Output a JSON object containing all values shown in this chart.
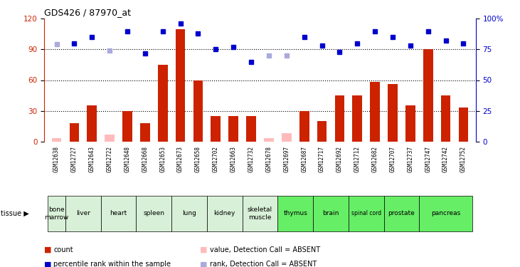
{
  "title": "GDS426 / 87970_at",
  "samples": [
    "GSM12638",
    "GSM12727",
    "GSM12643",
    "GSM12722",
    "GSM12648",
    "GSM12668",
    "GSM12653",
    "GSM12673",
    "GSM12658",
    "GSM12702",
    "GSM12663",
    "GSM12732",
    "GSM12678",
    "GSM12697",
    "GSM12687",
    "GSM12717",
    "GSM12692",
    "GSM12712",
    "GSM12682",
    "GSM12707",
    "GSM12737",
    "GSM12747",
    "GSM12742",
    "GSM12752"
  ],
  "tissues": [
    {
      "label": "bone\nmarrow",
      "start": 0,
      "end": 1,
      "color": "#d8f0d8"
    },
    {
      "label": "liver",
      "start": 1,
      "end": 3,
      "color": "#d8f0d8"
    },
    {
      "label": "heart",
      "start": 3,
      "end": 5,
      "color": "#d8f0d8"
    },
    {
      "label": "spleen",
      "start": 5,
      "end": 7,
      "color": "#d8f0d8"
    },
    {
      "label": "lung",
      "start": 7,
      "end": 9,
      "color": "#d8f0d8"
    },
    {
      "label": "kidney",
      "start": 9,
      "end": 11,
      "color": "#d8f0d8"
    },
    {
      "label": "skeletal\nmuscle",
      "start": 11,
      "end": 13,
      "color": "#d8f0d8"
    },
    {
      "label": "thymus",
      "start": 13,
      "end": 15,
      "color": "#66ee66"
    },
    {
      "label": "brain",
      "start": 15,
      "end": 17,
      "color": "#66ee66"
    },
    {
      "label": "spinal cord",
      "start": 17,
      "end": 19,
      "color": "#66ee66"
    },
    {
      "label": "prostate",
      "start": 19,
      "end": 21,
      "color": "#66ee66"
    },
    {
      "label": "pancreas",
      "start": 21,
      "end": 24,
      "color": "#66ee66"
    }
  ],
  "bar_values": [
    3,
    18,
    35,
    7,
    30,
    18,
    75,
    110,
    60,
    25,
    25,
    25,
    3,
    8,
    30,
    20,
    45,
    45,
    58,
    56,
    35,
    90,
    45,
    33
  ],
  "bar_absent": [
    true,
    false,
    false,
    true,
    false,
    false,
    false,
    false,
    false,
    false,
    false,
    false,
    true,
    true,
    false,
    false,
    false,
    false,
    false,
    false,
    false,
    false,
    false,
    false
  ],
  "rank_values": [
    79,
    80,
    85,
    74,
    90,
    72,
    90,
    96,
    88,
    75,
    77,
    65,
    70,
    70,
    85,
    78,
    73,
    80,
    90,
    85,
    78,
    90,
    82,
    80
  ],
  "rank_absent": [
    true,
    false,
    false,
    true,
    false,
    false,
    false,
    false,
    false,
    false,
    false,
    false,
    true,
    true,
    false,
    false,
    false,
    false,
    false,
    false,
    false,
    false,
    false,
    false
  ],
  "left_ylim": [
    0,
    120
  ],
  "right_ylim": [
    0,
    100
  ],
  "left_yticks": [
    0,
    30,
    60,
    90,
    120
  ],
  "right_yticks": [
    0,
    25,
    50,
    75,
    100
  ],
  "right_yticklabels": [
    "0",
    "25",
    "50",
    "75",
    "100%"
  ],
  "bar_color_present": "#cc2200",
  "bar_color_absent": "#ffbbbb",
  "rank_color_present": "#0000cc",
  "rank_color_absent": "#aaaadd",
  "sample_bg_color": "#d8d8d8",
  "legend_items": [
    {
      "color": "#cc2200",
      "label": "count"
    },
    {
      "color": "#0000cc",
      "label": "percentile rank within the sample"
    },
    {
      "color": "#ffbbbb",
      "label": "value, Detection Call = ABSENT"
    },
    {
      "color": "#aaaadd",
      "label": "rank, Detection Call = ABSENT"
    }
  ]
}
